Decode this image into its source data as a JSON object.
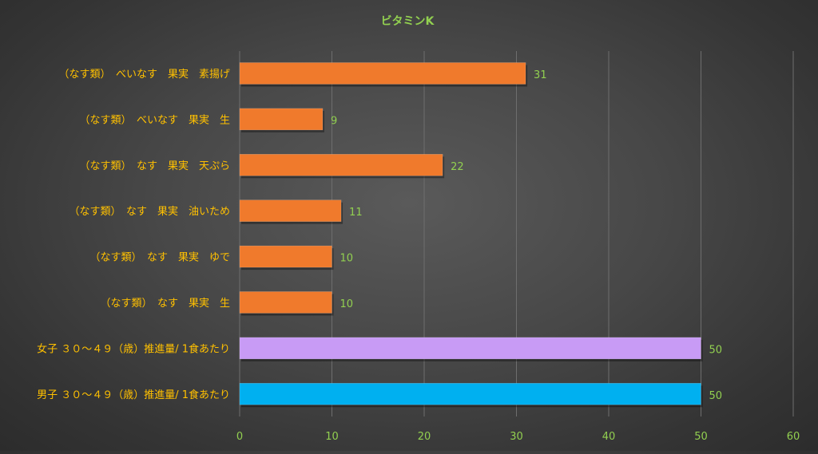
{
  "chart_data": {
    "type": "bar",
    "orientation": "horizontal",
    "title": "ビタミンK",
    "xlabel": "",
    "ylabel": "",
    "xlim": [
      0,
      60
    ],
    "ticks": [
      0,
      10,
      20,
      30,
      40,
      50,
      60
    ],
    "grid": true,
    "legend": "none",
    "categories": [
      "（なす類）　べいなす　果実　素揚げ",
      "（なす類）　べいなす　果実　生",
      "（なす類）　なす　果実　天ぷら",
      "（なす類）　なす　果実　油いため",
      "（なす類）　なす　果実　ゆで",
      "（なす類）　なす　果実　生",
      "女子 ３０～４９（歳）推進量/ 1食あたり",
      "男子 ３０～４９（歳）推進量/ 1食あたり"
    ],
    "values": [
      31,
      9,
      22,
      11,
      10,
      10,
      50,
      50
    ],
    "value_labels": [
      "31",
      "9",
      "22",
      "11",
      "10",
      "10",
      "50",
      "50"
    ],
    "bar_colors": [
      "#f07a2c",
      "#f07a2c",
      "#f07a2c",
      "#f07a2c",
      "#f07a2c",
      "#f07a2c",
      "#c89bf5",
      "#00b0f0"
    ],
    "colors": {
      "title": "#92d050",
      "category_labels": "#ffc000",
      "value_labels": "#92d050",
      "tick_labels": "#92d050",
      "gridlines": "#6e6e6e"
    }
  }
}
